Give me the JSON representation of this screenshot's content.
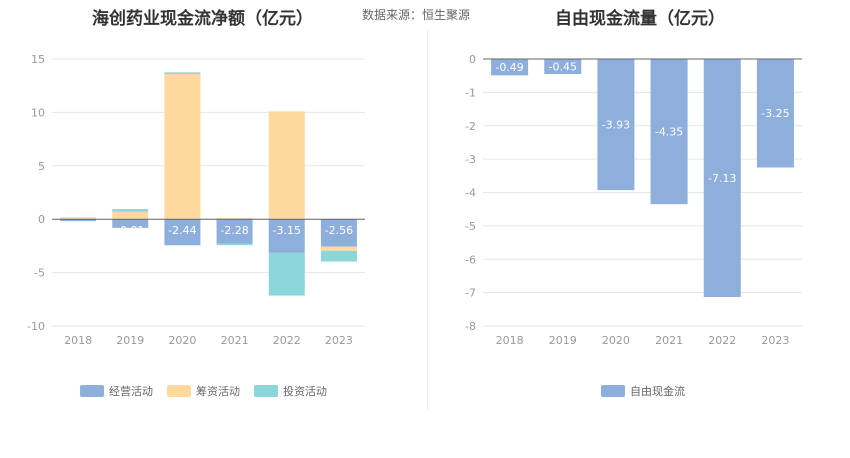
{
  "source": "数据来源：恒生聚源",
  "chart_data": [
    {
      "type": "bar",
      "stacked": true,
      "title": "海创药业现金流净额（亿元）",
      "categories": [
        "2018",
        "2019",
        "2020",
        "2021",
        "2022",
        "2023"
      ],
      "ylim": [
        -10,
        15
      ],
      "yticks": [
        15,
        10,
        5,
        0,
        -5,
        -10
      ],
      "grid": true,
      "legend_position": "bottom",
      "series": [
        {
          "name": "经营活动",
          "color": "#8eaedc",
          "values": [
            -0.18,
            -0.81,
            -2.44,
            -2.28,
            -3.15,
            -2.56
          ],
          "labels": [
            "-0.18",
            "-0.81",
            "-2.44",
            "-2.28",
            "-3.15",
            "-2.56"
          ]
        },
        {
          "name": "筹资活动",
          "color": "#fdd99e",
          "values": [
            0.1,
            0.7,
            13.6,
            0.1,
            10.1,
            -0.4
          ]
        },
        {
          "name": "投资活动",
          "color": "#8ad6d8",
          "values": [
            0.05,
            0.25,
            0.15,
            -0.15,
            -4.0,
            -1.0
          ]
        }
      ]
    },
    {
      "type": "bar",
      "title": "自由现金流量（亿元）",
      "categories": [
        "2018",
        "2019",
        "2020",
        "2021",
        "2022",
        "2023"
      ],
      "ylim": [
        -8,
        0
      ],
      "yticks": [
        0,
        -1,
        -2,
        -3,
        -4,
        -5,
        -6,
        -7,
        -8
      ],
      "grid": true,
      "legend_position": "bottom",
      "series": [
        {
          "name": "自由现金流",
          "color": "#8eaedc",
          "values": [
            -0.49,
            -0.45,
            -3.93,
            -4.35,
            -7.13,
            -3.25
          ],
          "labels": [
            "-0.49",
            "-0.45",
            "-3.93",
            "-4.35",
            "-7.13",
            "-3.25"
          ]
        }
      ]
    }
  ]
}
